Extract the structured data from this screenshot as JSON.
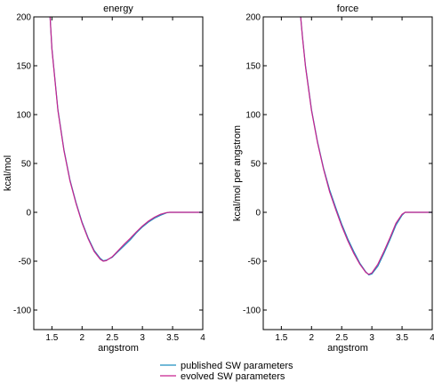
{
  "chart_data": [
    {
      "type": "line",
      "title": "energy",
      "xlabel": "angstrom",
      "ylabel": "kcal/mol",
      "xlim": [
        1.2,
        4.0
      ],
      "ylim": [
        -120,
        200
      ],
      "xticks": [
        1.5,
        2,
        2.5,
        3,
        3.5,
        4
      ],
      "xtick_labels": [
        "1.5",
        "2",
        "2.5",
        "3",
        "3.5",
        "4"
      ],
      "yticks": [
        -100,
        -50,
        0,
        50,
        100,
        150,
        200
      ],
      "ytick_labels": [
        "-100",
        "-50",
        "0",
        "50",
        "100",
        "150",
        "200"
      ],
      "grid": false,
      "series": [
        {
          "name": "published SW parameters",
          "color": "#1f8fbf",
          "x": [
            1.47,
            1.5,
            1.6,
            1.7,
            1.8,
            1.9,
            2.0,
            2.1,
            2.2,
            2.3,
            2.35,
            2.4,
            2.5,
            2.6,
            2.7,
            2.8,
            2.9,
            3.0,
            3.1,
            3.2,
            3.3,
            3.4,
            3.45,
            3.5,
            4.0
          ],
          "y": [
            200,
            168,
            105,
            64,
            33,
            10,
            -10,
            -26,
            -39,
            -47,
            -49.5,
            -49,
            -46,
            -40,
            -34,
            -28,
            -21,
            -15,
            -10,
            -6,
            -3,
            -0.5,
            0,
            0,
            0
          ]
        },
        {
          "name": "evolved SW parameters",
          "color": "#c8238f",
          "x": [
            1.47,
            1.5,
            1.6,
            1.7,
            1.8,
            1.9,
            2.0,
            2.1,
            2.2,
            2.3,
            2.35,
            2.4,
            2.5,
            2.6,
            2.7,
            2.8,
            2.9,
            3.0,
            3.1,
            3.2,
            3.3,
            3.4,
            3.45,
            3.5,
            4.0
          ],
          "y": [
            200,
            167,
            104,
            63,
            32,
            9,
            -11,
            -27,
            -40,
            -48,
            -50,
            -49.5,
            -45.5,
            -39,
            -32.5,
            -26.5,
            -20,
            -14,
            -9,
            -5,
            -2,
            -0.3,
            0,
            0,
            0
          ]
        }
      ]
    },
    {
      "type": "line",
      "title": "force",
      "xlabel": "angstrom",
      "ylabel": "kcal/mol per angstrom",
      "xlim": [
        1.2,
        4.0
      ],
      "ylim": [
        -120,
        200
      ],
      "xticks": [
        1.5,
        2,
        2.5,
        3,
        3.5,
        4
      ],
      "xtick_labels": [
        "1.5",
        "2",
        "2.5",
        "3",
        "3.5",
        "4"
      ],
      "yticks": [
        -100,
        -50,
        0,
        50,
        100,
        150,
        200
      ],
      "ytick_labels": [
        "-100",
        "-50",
        "0",
        "50",
        "100",
        "150",
        "200"
      ],
      "grid": false,
      "series": [
        {
          "name": "published SW parameters",
          "color": "#1f8fbf",
          "x": [
            1.82,
            1.85,
            1.9,
            2.0,
            2.1,
            2.2,
            2.3,
            2.4,
            2.5,
            2.6,
            2.7,
            2.8,
            2.9,
            2.95,
            3.0,
            3.1,
            3.2,
            3.3,
            3.4,
            3.5,
            3.55,
            3.6,
            4.0
          ],
          "y": [
            200,
            180,
            150,
            105,
            72,
            45,
            23,
            5,
            -12,
            -27,
            -40,
            -52,
            -61,
            -64,
            -63,
            -55,
            -42,
            -28,
            -13,
            -3,
            0,
            0,
            0
          ]
        },
        {
          "name": "evolved SW parameters",
          "color": "#c8238f",
          "x": [
            1.82,
            1.85,
            1.9,
            2.0,
            2.1,
            2.2,
            2.3,
            2.4,
            2.5,
            2.6,
            2.7,
            2.8,
            2.9,
            2.95,
            3.0,
            3.1,
            3.2,
            3.3,
            3.4,
            3.5,
            3.55,
            3.6,
            4.0
          ],
          "y": [
            200,
            179,
            149,
            104,
            71,
            44,
            21,
            3,
            -14,
            -29,
            -42,
            -53,
            -61.5,
            -63.5,
            -62,
            -53,
            -40,
            -26,
            -11,
            -2,
            0,
            0,
            0
          ]
        }
      ]
    }
  ],
  "legend": {
    "placement": "bottom-center",
    "entries": [
      {
        "label": "published SW parameters",
        "color": "#1f8fbf"
      },
      {
        "label": "evolved SW parameters",
        "color": "#c8238f"
      }
    ]
  }
}
